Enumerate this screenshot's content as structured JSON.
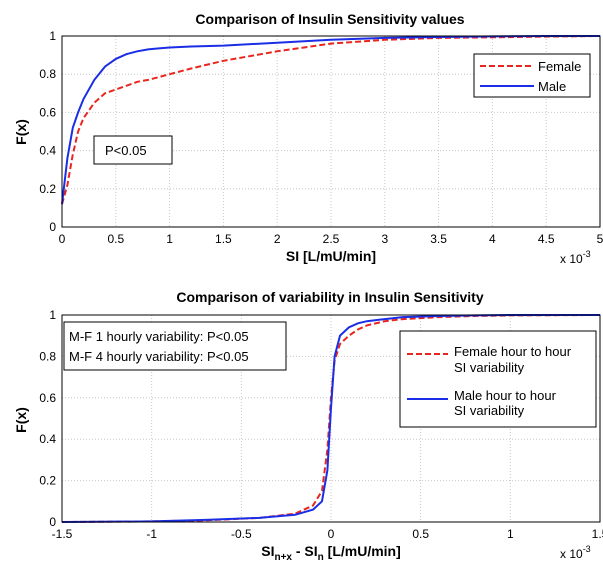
{
  "chart_data": [
    {
      "type": "line",
      "title": "Comparison of Insulin Sensitivity values",
      "xlabel": "SI [L/mU/min]",
      "ylabel": "F(x)",
      "x_multiplier": "x 10",
      "x_multiplier_exp": "-3",
      "xlim": [
        0,
        0.005
      ],
      "ylim": [
        0,
        1
      ],
      "xticks": [
        0,
        0.5,
        1,
        1.5,
        2,
        2.5,
        3,
        3.5,
        4,
        4.5,
        5
      ],
      "xtick_labels": [
        "0",
        "0.5",
        "1",
        "1.5",
        "2",
        "2.5",
        "3",
        "3.5",
        "4",
        "4.5",
        "5"
      ],
      "yticks": [
        0,
        0.2,
        0.4,
        0.6,
        0.8,
        1
      ],
      "ytick_labels": [
        "0",
        "0.2",
        "0.4",
        "0.6",
        "0.8",
        "1"
      ],
      "grid": true,
      "legend_position": "top-right",
      "annotation": "P<0.05",
      "series": [
        {
          "name": "Female",
          "color": "#e8261e",
          "style": "dashed",
          "x": [
            0,
            5e-05,
            0.0001,
            0.00015,
            0.0002,
            0.0003,
            0.0004,
            0.0005,
            0.0006,
            0.0007,
            0.0008,
            0.0009,
            0.001,
            0.0012,
            0.0015,
            0.002,
            0.0025,
            0.003,
            0.0035,
            0.004,
            0.0045,
            0.005
          ],
          "y": [
            0.12,
            0.22,
            0.38,
            0.5,
            0.57,
            0.65,
            0.7,
            0.72,
            0.74,
            0.76,
            0.77,
            0.785,
            0.8,
            0.83,
            0.87,
            0.92,
            0.96,
            0.98,
            0.99,
            0.993,
            0.997,
            1.0
          ]
        },
        {
          "name": "Male",
          "color": "#1a2ee6",
          "style": "solid",
          "x": [
            0,
            5e-05,
            0.0001,
            0.00015,
            0.0002,
            0.0003,
            0.0004,
            0.0005,
            0.0006,
            0.0007,
            0.0008,
            0.0009,
            0.001,
            0.0012,
            0.0015,
            0.002,
            0.0025,
            0.003,
            0.0035,
            0.004,
            0.0045,
            0.005
          ],
          "y": [
            0.12,
            0.36,
            0.52,
            0.6,
            0.67,
            0.77,
            0.84,
            0.88,
            0.905,
            0.92,
            0.93,
            0.935,
            0.94,
            0.945,
            0.95,
            0.965,
            0.98,
            0.99,
            0.995,
            0.998,
            1.0,
            1.0
          ]
        }
      ]
    },
    {
      "type": "line",
      "title": "Comparison of variability in Insulin Sensitivity",
      "xlabel_main": "SI",
      "xlabel_sub1": "n+x",
      "xlabel_mid": " - SI",
      "xlabel_sub2": "n",
      "xlabel_end": " [L/mU/min]",
      "ylabel": "F(x)",
      "x_multiplier": "x 10",
      "x_multiplier_exp": "-3",
      "xlim": [
        -0.0015,
        0.0015
      ],
      "ylim": [
        0,
        1
      ],
      "xticks": [
        -1.5,
        -1,
        -0.5,
        0,
        0.5,
        1,
        1.5
      ],
      "xtick_labels": [
        "-1.5",
        "-1",
        "-0.5",
        "0",
        "0.5",
        "1",
        "1.5"
      ],
      "yticks": [
        0,
        0.2,
        0.4,
        0.6,
        0.8,
        1
      ],
      "ytick_labels": [
        "0",
        "0.2",
        "0.4",
        "0.6",
        "0.8",
        "1"
      ],
      "grid": true,
      "legend_position": "top-right",
      "annotation_lines": [
        "M-F 1 hourly variability: P<0.05",
        "M-F 4 hourly variability: P<0.05"
      ],
      "series": [
        {
          "name": "Female hour to hour SI variability",
          "label_lines": [
            "Female hour to hour",
            "SI variability"
          ],
          "color": "#e8261e",
          "style": "dashed",
          "x": [
            -0.0015,
            -0.001,
            -0.0007,
            -0.0004,
            -0.0002,
            -0.0001,
            -5e-05,
            -2e-05,
            0,
            2e-05,
            5e-05,
            0.0001,
            0.00015,
            0.0002,
            0.0003,
            0.0004,
            0.0006,
            0.0008,
            0.001,
            0.0015
          ],
          "y": [
            0.0,
            0.003,
            0.008,
            0.02,
            0.04,
            0.08,
            0.15,
            0.35,
            0.6,
            0.78,
            0.86,
            0.9,
            0.93,
            0.95,
            0.97,
            0.98,
            0.99,
            0.995,
            0.998,
            1.0
          ]
        },
        {
          "name": "Male hour to hour SI variability",
          "label_lines": [
            "Male hour to hour",
            "SI variability"
          ],
          "color": "#1a2ee6",
          "style": "solid",
          "x": [
            -0.0015,
            -0.001,
            -0.0007,
            -0.0004,
            -0.0002,
            -0.0001,
            -5e-05,
            -2e-05,
            0,
            2e-05,
            5e-05,
            0.0001,
            0.00015,
            0.0002,
            0.0003,
            0.0004,
            0.0006,
            0.0008,
            0.001,
            0.0015
          ],
          "y": [
            0.0,
            0.003,
            0.01,
            0.02,
            0.035,
            0.06,
            0.1,
            0.25,
            0.55,
            0.8,
            0.9,
            0.94,
            0.96,
            0.97,
            0.98,
            0.99,
            0.995,
            0.998,
            1.0,
            1.0
          ]
        }
      ]
    }
  ]
}
